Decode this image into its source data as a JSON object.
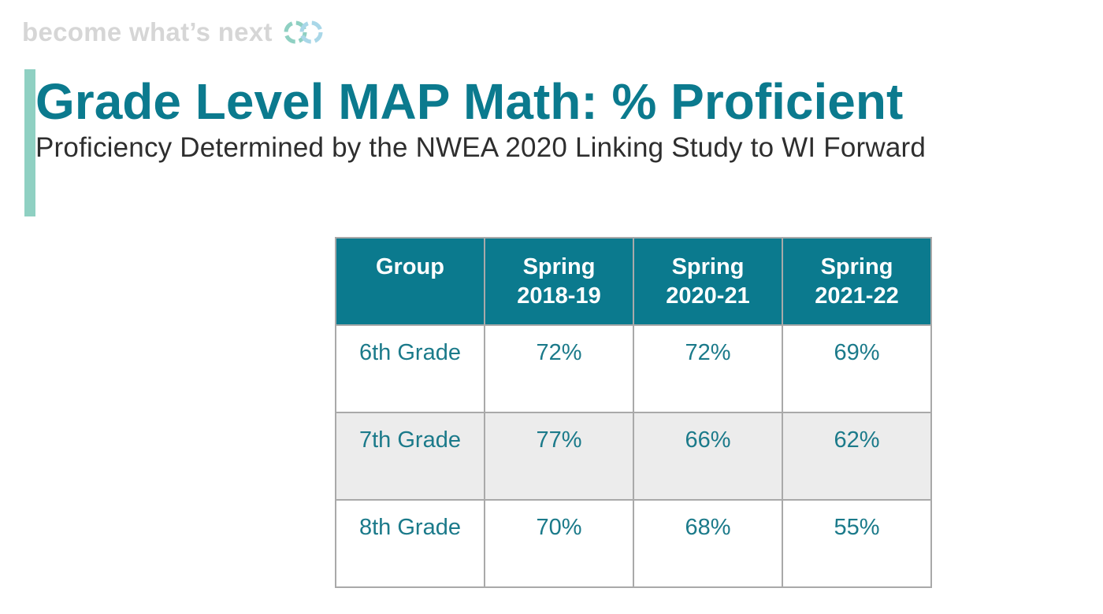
{
  "tagline": "become what’s next",
  "logo": {
    "icon": "interlocking-rings-logo",
    "colors": [
      "#8fd0c2",
      "#a9d7e8"
    ]
  },
  "accent_color": "#8fd0c2",
  "brand_color": "#0b7a8e",
  "title": "Grade Level MAP Math: % Proficient",
  "subtitle": "Proficiency Determined by the NWEA 2020 Linking Study to WI Forward",
  "table": {
    "headers": [
      {
        "line1": "Group",
        "line2": ""
      },
      {
        "line1": "Spring",
        "line2": "2018-19"
      },
      {
        "line1": "Spring",
        "line2": "2020-21"
      },
      {
        "line1": "Spring",
        "line2": "2021-22"
      }
    ],
    "rows": [
      {
        "group": "6th Grade",
        "values": [
          "72%",
          "72%",
          "69%"
        ]
      },
      {
        "group": "7th Grade",
        "values": [
          "77%",
          "66%",
          "62%"
        ]
      },
      {
        "group": "8th Grade",
        "values": [
          "70%",
          "68%",
          "55%"
        ]
      }
    ]
  }
}
